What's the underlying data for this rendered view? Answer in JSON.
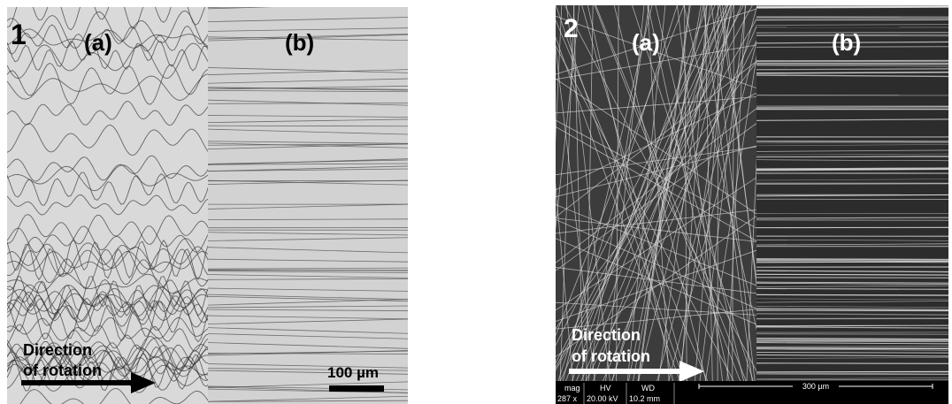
{
  "panels": [
    {
      "label": "1",
      "sub_labels": [
        "(a)",
        "(b)"
      ],
      "arrow_text": [
        "Direction",
        "of rotation"
      ],
      "scale_bar": "100 µm"
    },
    {
      "label": "2",
      "sub_labels": [
        "(a)",
        "(b)"
      ],
      "arrow_text": [
        "Direction",
        "of rotation"
      ],
      "scale_bar": "300 µm",
      "info_bar": {
        "headers": [
          "mag",
          "HV",
          "WD"
        ],
        "values": [
          "287 x",
          "20.00 kV",
          "10.2 mm"
        ]
      }
    }
  ]
}
